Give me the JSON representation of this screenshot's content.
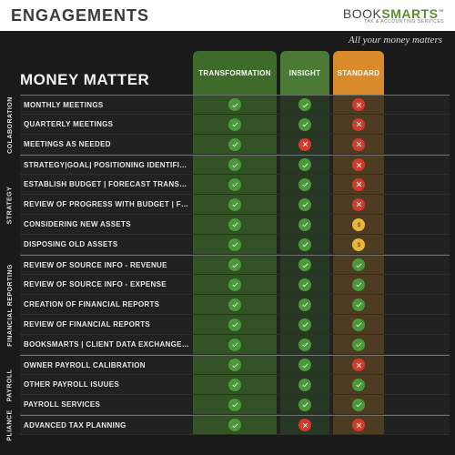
{
  "header": {
    "title": "ENGAGEMENTS",
    "brand_a": "BOOK",
    "brand_b": "SMARTS",
    "brand_sub": "TAX & ACCOUNTING SERVICES",
    "tagline": "All your money matters"
  },
  "table": {
    "heading": "MONEY MATTER",
    "tiers": [
      {
        "label": "TRANSFORMATION",
        "bg": "#3f6b2a"
      },
      {
        "label": "INSIGHT",
        "bg": "#4a7a33"
      },
      {
        "label": "STANDARD",
        "bg": "#d98a2b"
      }
    ]
  },
  "icon_colors": {
    "check_bg": "#4a9a3a",
    "check_fg": "#ffffff",
    "cross_bg": "#d43a2a",
    "cross_fg": "#ffffff",
    "dollar_bg": "#e8b73a",
    "dollar_fg": "#6b5a1a"
  },
  "sections": [
    {
      "label": "COLABORATION",
      "rows": [
        {
          "label": "MONTHLY MEETINGS",
          "cells": [
            "check",
            "check",
            "cross"
          ]
        },
        {
          "label": "QUARTERLY MEETINGS",
          "cells": [
            "check",
            "check",
            "cross"
          ]
        },
        {
          "label": "MEETINGS AS NEEDED",
          "cells": [
            "check",
            "cross",
            "cross"
          ]
        }
      ]
    },
    {
      "label": "STRATEGY",
      "rows": [
        {
          "label": "STRATEGY|GOAL| POSITIONING IDENTIFICATION",
          "cells": [
            "check",
            "check",
            "cross"
          ]
        },
        {
          "label": "ESTABLISH BUDGET | FORECAST TRANSFORMATION PROCESS",
          "cells": [
            "check",
            "check",
            "cross"
          ]
        },
        {
          "label": "REVIEW OF PROGRESS WITH BUDGET | FORECAST",
          "cells": [
            "check",
            "check",
            "cross"
          ]
        },
        {
          "label": "CONSIDERING NEW ASSETS",
          "cells": [
            "check",
            "check",
            "dollar"
          ]
        },
        {
          "label": "DISPOSING OLD ASSETS",
          "cells": [
            "check",
            "check",
            "dollar"
          ]
        }
      ]
    },
    {
      "label": "FINANCIAL REPORTING",
      "rows": [
        {
          "label": "REVIEW OF SOURCE INFO - REVENUE",
          "cells": [
            "check",
            "check",
            "check"
          ]
        },
        {
          "label": "REVIEW OF SOURCE INFO - EXPENSE",
          "cells": [
            "check",
            "check",
            "check"
          ]
        },
        {
          "label": "CREATION OF FINANCIAL REPORTS",
          "cells": [
            "check",
            "check",
            "check"
          ]
        },
        {
          "label": "REVIEW OF FINANCIAL REPORTS",
          "cells": [
            "check",
            "check",
            "check"
          ]
        },
        {
          "label": "BOOKSMARTS | CLIENT DATA EXCHANGE COMMENTS",
          "cells": [
            "check",
            "check",
            "check"
          ]
        }
      ]
    },
    {
      "label": "PAYROLL",
      "rows": [
        {
          "label": "OWNER PAYROLL CALIBRATION",
          "cells": [
            "check",
            "check",
            "cross"
          ]
        },
        {
          "label": "OTHER PAYROLL ISUUES",
          "cells": [
            "check",
            "check",
            "check"
          ]
        },
        {
          "label": "PAYROLL SERVICES",
          "cells": [
            "check",
            "check",
            "check"
          ]
        }
      ]
    },
    {
      "label": "PLIANCE",
      "rows": [
        {
          "label": "ADVANCED TAX PLANNING",
          "cells": [
            "check",
            "cross",
            "cross"
          ]
        }
      ]
    }
  ]
}
